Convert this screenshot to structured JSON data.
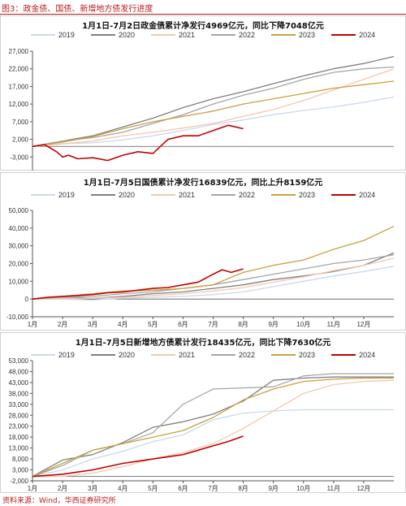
{
  "figure": {
    "title": "图3：政金债、国债、新增地方债发行进度",
    "source": "资料来源：Wind，华西证券研究所"
  },
  "series_colors": {
    "2019": "#c9d9ec",
    "2020": "#7f7f7f",
    "2021": "#f4c7ad",
    "2022": "#a5a5a5",
    "2023": "#c9a13f",
    "2024": "#c00000"
  },
  "chart_data": [
    {
      "type": "line",
      "title": "1月1日-7月2日政金债累计净发行4969亿元，同比下降7048亿元",
      "x_tick_labels": [
        "1月",
        "2月",
        "3月",
        "4月",
        "5月",
        "6月",
        "7月",
        "8月",
        "9月",
        "10月",
        "11月",
        "12月"
      ],
      "xlim": [
        0,
        12
      ],
      "ylim": [
        -8000,
        27000
      ],
      "y_ticks": [
        -8000,
        -3000,
        2000,
        7000,
        12000,
        17000,
        22000,
        27000
      ],
      "y_tick_labels": [
        "-8,000",
        "-3,000",
        "2,000",
        "7,000",
        "12,000",
        "17,000",
        "22,000",
        "27,000"
      ],
      "series": [
        {
          "name": "2019",
          "x": [
            0,
            1,
            2,
            3,
            4,
            5,
            6,
            7,
            8,
            9,
            10,
            11,
            12
          ],
          "y": [
            0,
            800,
            1000,
            1800,
            3000,
            4500,
            6200,
            7500,
            9000,
            10200,
            11200,
            12500,
            14000
          ]
        },
        {
          "name": "2020",
          "x": [
            0,
            1,
            2,
            3,
            4,
            5,
            6,
            7,
            8,
            9,
            10,
            11,
            12
          ],
          "y": [
            0,
            1500,
            3000,
            5500,
            8000,
            11000,
            13500,
            15500,
            17800,
            20000,
            22000,
            23500,
            25500
          ]
        },
        {
          "name": "2021",
          "x": [
            0,
            1,
            2,
            3,
            4,
            5,
            6,
            7,
            8,
            9,
            10,
            11,
            12
          ],
          "y": [
            0,
            700,
            1500,
            3000,
            4000,
            5200,
            6500,
            8500,
            10500,
            13000,
            16000,
            19000,
            22000
          ]
        },
        {
          "name": "2022",
          "x": [
            0,
            1,
            2,
            3,
            4,
            5,
            6,
            7,
            8,
            9,
            10,
            11,
            12
          ],
          "y": [
            0,
            1500,
            2500,
            4000,
            6500,
            9000,
            12000,
            14500,
            16500,
            19000,
            21000,
            22000,
            22500
          ]
        },
        {
          "name": "2023",
          "x": [
            0,
            1,
            2,
            3,
            4,
            5,
            6,
            7,
            8,
            9,
            10,
            11,
            12
          ],
          "y": [
            0,
            1200,
            2800,
            5000,
            7000,
            8500,
            10000,
            12000,
            13500,
            15000,
            16500,
            17500,
            18500
          ]
        },
        {
          "name": "2024",
          "x": [
            0,
            0.4,
            0.8,
            1.0,
            1.2,
            1.5,
            2.0,
            2.5,
            3.0,
            3.5,
            4.0,
            4.5,
            5.0,
            5.5,
            6.0,
            6.5,
            7.0
          ],
          "y": [
            0,
            500,
            -1500,
            -3000,
            -2500,
            -3500,
            -3200,
            -4000,
            -2500,
            -1500,
            -2000,
            2000,
            3000,
            3000,
            4500,
            6000,
            5000
          ]
        }
      ]
    },
    {
      "type": "line",
      "title": "1月1日-7月5日国债累计净发行16839亿元，同比上升8159亿元",
      "x_tick_labels": [
        "1月",
        "2月",
        "3月",
        "4月",
        "5月",
        "6月",
        "7月",
        "8月",
        "9月",
        "10月",
        "11月",
        "12月"
      ],
      "xlim": [
        0,
        12
      ],
      "ylim": [
        -10000,
        50000
      ],
      "y_ticks": [
        -10000,
        0,
        10000,
        20000,
        30000,
        40000,
        50000
      ],
      "y_tick_labels": [
        "-10,000",
        "0",
        "10,000",
        "20,000",
        "30,000",
        "40,000",
        "50,000"
      ],
      "series": [
        {
          "name": "2019",
          "x": [
            0,
            1,
            2,
            3,
            4,
            5,
            6,
            7,
            8,
            9,
            10,
            11,
            12
          ],
          "y": [
            0,
            0,
            -500,
            500,
            1000,
            1500,
            2500,
            4000,
            7000,
            10000,
            13000,
            15500,
            18500
          ]
        },
        {
          "name": "2020",
          "x": [
            0,
            1,
            2,
            3,
            4,
            5,
            6,
            7,
            8,
            9,
            10,
            11,
            12
          ],
          "y": [
            0,
            1000,
            500,
            1500,
            3000,
            4000,
            6000,
            8000,
            11000,
            13000,
            15500,
            19000,
            26000
          ]
        },
        {
          "name": "2021",
          "x": [
            0,
            1,
            2,
            3,
            4,
            5,
            6,
            7,
            8,
            9,
            10,
            11,
            12
          ],
          "y": [
            0,
            500,
            500,
            1000,
            2000,
            3000,
            4500,
            6500,
            9500,
            12500,
            16000,
            19000,
            23000
          ]
        },
        {
          "name": "2022",
          "x": [
            0,
            1,
            2,
            3,
            4,
            5,
            6,
            7,
            8,
            9,
            10,
            11,
            12
          ],
          "y": [
            0,
            1000,
            1500,
            3000,
            4000,
            6000,
            8000,
            11000,
            14000,
            17000,
            20000,
            22000,
            25000
          ]
        },
        {
          "name": "2023",
          "x": [
            0,
            1,
            2,
            3,
            4,
            5,
            6,
            7,
            8,
            9,
            10,
            11,
            12
          ],
          "y": [
            0,
            1500,
            3000,
            4500,
            5000,
            6000,
            8000,
            15000,
            19000,
            22000,
            28000,
            33000,
            41000
          ]
        },
        {
          "name": "2024",
          "x": [
            0,
            0.5,
            1.0,
            1.5,
            2.0,
            2.5,
            3.0,
            3.5,
            4.0,
            4.5,
            5.0,
            5.5,
            6.0,
            6.3,
            6.6,
            7.0
          ],
          "y": [
            0,
            1000,
            1500,
            2000,
            2500,
            3500,
            4000,
            5000,
            6000,
            6500,
            8000,
            9500,
            14000,
            16500,
            15000,
            17000
          ]
        }
      ]
    },
    {
      "type": "line",
      "title": "1月1日-7月5日新增地方债累计发行18435亿元，同比下降7630亿元",
      "x_tick_labels": [
        "1月",
        "2月",
        "3月",
        "4月",
        "5月",
        "6月",
        "7月",
        "8月",
        "9月",
        "10月",
        "11月",
        "12月"
      ],
      "xlim": [
        0,
        12
      ],
      "ylim": [
        -2000,
        53000
      ],
      "y_ticks": [
        -2000,
        3000,
        8000,
        13000,
        18000,
        23000,
        28000,
        33000,
        38000,
        43000,
        48000,
        53000
      ],
      "y_tick_labels": [
        "-2,000",
        "3,000",
        "8,000",
        "13,000",
        "18,000",
        "23,000",
        "28,000",
        "33,000",
        "38,000",
        "43,000",
        "48,000",
        "53,000"
      ],
      "series": [
        {
          "name": "2019",
          "x": [
            0,
            1,
            2,
            3,
            4,
            5,
            6,
            7,
            8,
            9,
            10,
            11,
            12
          ],
          "y": [
            0,
            3000,
            8000,
            11500,
            16000,
            19000,
            26000,
            29000,
            30000,
            30500,
            30500,
            30500,
            30500
          ]
        },
        {
          "name": "2020",
          "x": [
            0,
            1,
            2,
            3,
            4,
            5,
            6,
            7,
            8,
            9,
            10,
            11,
            12
          ],
          "y": [
            0,
            7500,
            10000,
            15500,
            22500,
            25000,
            28500,
            34500,
            44000,
            45000,
            45500,
            45500,
            45500
          ]
        },
        {
          "name": "2021",
          "x": [
            0,
            1,
            2,
            3,
            4,
            5,
            6,
            7,
            8,
            9,
            10,
            11,
            12
          ],
          "y": [
            0,
            0,
            1500,
            4500,
            8000,
            11000,
            15000,
            22000,
            30000,
            38000,
            42000,
            43500,
            44000
          ]
        },
        {
          "name": "2022",
          "x": [
            0,
            1,
            2,
            3,
            4,
            5,
            6,
            7,
            8,
            9,
            10,
            11,
            12
          ],
          "y": [
            0,
            5000,
            12000,
            15000,
            20000,
            33000,
            40000,
            40500,
            41000,
            46000,
            47000,
            47000,
            47000
          ]
        },
        {
          "name": "2023",
          "x": [
            0,
            1,
            2,
            3,
            4,
            5,
            6,
            7,
            8,
            9,
            10,
            11,
            12
          ],
          "y": [
            0,
            6000,
            12000,
            15000,
            18000,
            21000,
            27000,
            35000,
            40000,
            43500,
            44500,
            45000,
            45000
          ]
        },
        {
          "name": "2024",
          "x": [
            0,
            0.5,
            1.0,
            1.5,
            2.0,
            2.5,
            3.0,
            3.5,
            4.0,
            4.5,
            5.0,
            5.5,
            6.0,
            6.5,
            7.0
          ],
          "y": [
            0,
            500,
            1000,
            2000,
            3000,
            4500,
            6000,
            7000,
            8000,
            9000,
            10000,
            12000,
            14000,
            16000,
            18435
          ]
        }
      ]
    }
  ]
}
